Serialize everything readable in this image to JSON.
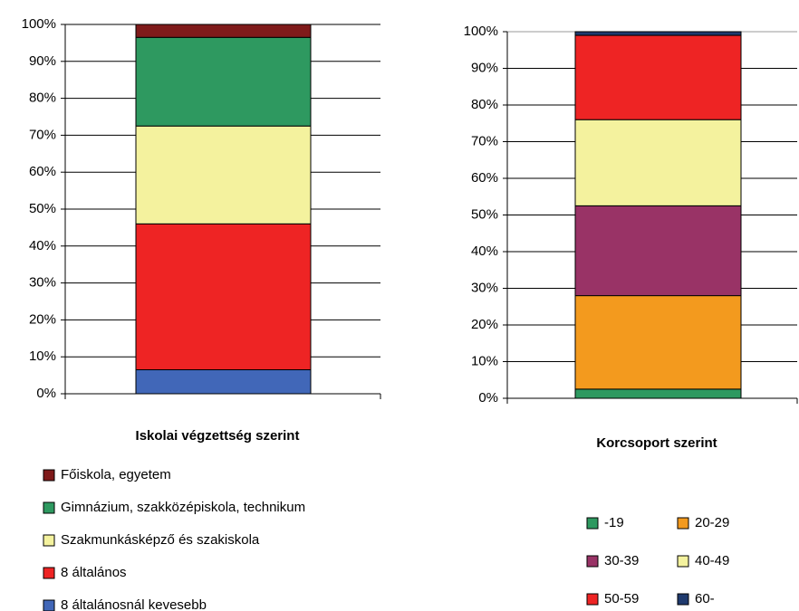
{
  "chart_data": [
    {
      "type": "stacked_bar",
      "title": "Iskolai végzettség szerint",
      "ylim": [
        0,
        100
      ],
      "yticks": [
        {
          "value": 0,
          "label": "0%"
        },
        {
          "value": 10,
          "label": "10%"
        },
        {
          "value": 20,
          "label": "20%"
        },
        {
          "value": 30,
          "label": "30%"
        },
        {
          "value": 40,
          "label": "40%"
        },
        {
          "value": 50,
          "label": "50%"
        },
        {
          "value": 60,
          "label": "60%"
        },
        {
          "value": 70,
          "label": "70%"
        },
        {
          "value": 80,
          "label": "80%"
        },
        {
          "value": 90,
          "label": "90%"
        },
        {
          "value": 100,
          "label": "100%"
        }
      ],
      "grid": true,
      "series": [
        {
          "name": "8 általánosnál kevesebb",
          "color": "#4167b8",
          "values": [
            6.5
          ]
        },
        {
          "name": "8 általános",
          "color": "#ee2424",
          "values": [
            39.5
          ]
        },
        {
          "name": "Szakmunkásképző és szakiskola",
          "color": "#f4f29e",
          "values": [
            26.5
          ]
        },
        {
          "name": "Gimnázium, szakközépiskola, technikum",
          "color": "#2e9960",
          "values": [
            24
          ]
        },
        {
          "name": "Főiskola, egyetem",
          "color": "#7f1a1a",
          "values": [
            3.5
          ]
        }
      ]
    },
    {
      "type": "stacked_bar",
      "title": "Korcsoport szerint",
      "ylim": [
        0,
        100
      ],
      "yticks": [
        {
          "value": 0,
          "label": "0%"
        },
        {
          "value": 10,
          "label": "10%"
        },
        {
          "value": 20,
          "label": "20%"
        },
        {
          "value": 30,
          "label": "30%"
        },
        {
          "value": 40,
          "label": "40%"
        },
        {
          "value": 50,
          "label": "50%"
        },
        {
          "value": 60,
          "label": "60%"
        },
        {
          "value": 70,
          "label": "70%"
        },
        {
          "value": 80,
          "label": "80%"
        },
        {
          "value": 90,
          "label": "90%"
        },
        {
          "value": 100,
          "label": "100%"
        }
      ],
      "grid": true,
      "series": [
        {
          "name": "-19",
          "color": "#2e9960",
          "values": [
            2.5
          ]
        },
        {
          "name": "20-29",
          "color": "#f39a1e",
          "values": [
            25.5
          ]
        },
        {
          "name": "30-39",
          "color": "#993366",
          "values": [
            24.5
          ]
        },
        {
          "name": "40-49",
          "color": "#f4f29e",
          "values": [
            23.5
          ]
        },
        {
          "name": "50-59",
          "color": "#ee2424",
          "values": [
            23
          ]
        },
        {
          "name": "60-",
          "color": "#1f3a6e",
          "values": [
            1
          ]
        }
      ]
    }
  ]
}
